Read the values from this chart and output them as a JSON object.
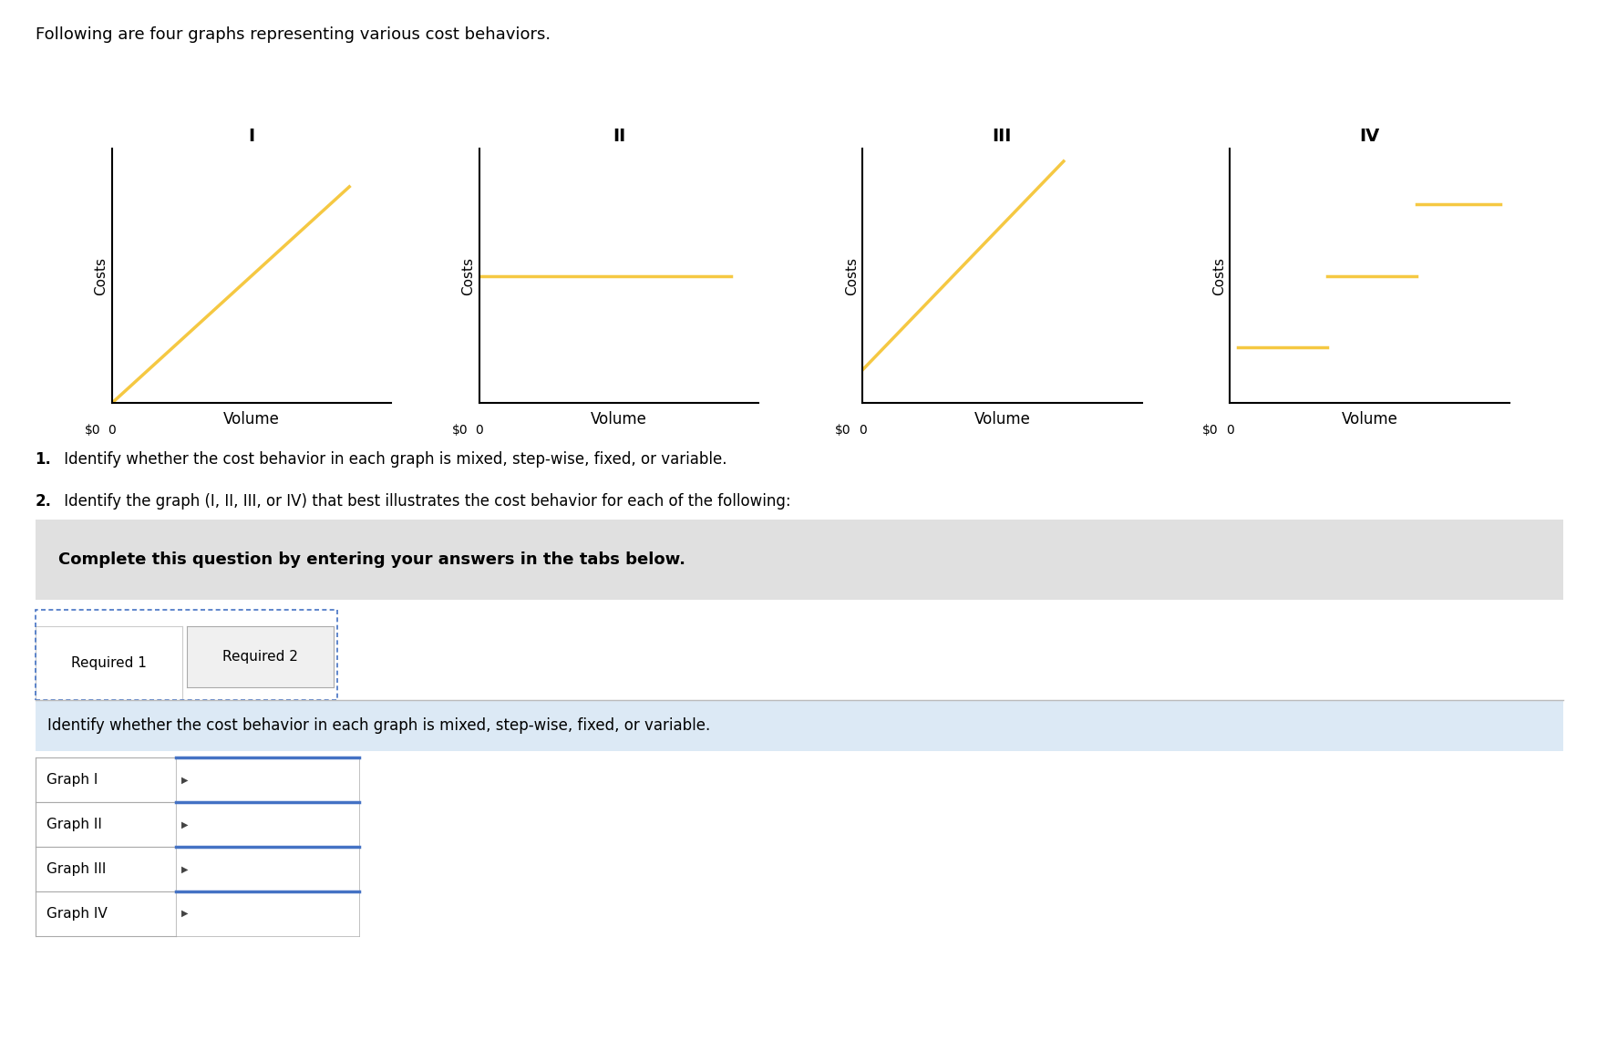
{
  "title_text": "Following are four graphs representing various cost behaviors.",
  "graph_titles": [
    "I",
    "II",
    "III",
    "IV"
  ],
  "ylabel": "Costs",
  "xlabel": "Volume",
  "dollar_label": "$0",
  "zero_label": "0",
  "line_color": "#F5C842",
  "axis_color": "#000000",
  "background_color": "#ffffff",
  "text_color": "#000000",
  "question_1_bold": "1.",
  "question_1_rest": " Identify whether the cost behavior in each graph is mixed, step-wise, fixed, or variable.",
  "question_2_bold": "2.",
  "question_2_rest": " Identify the graph (I, II, III, or IV) that best illustrates the cost behavior for each of the following:",
  "box_text": "Complete this question by entering your answers in the tabs below.",
  "tab1": "Required 1",
  "tab2": "Required 2",
  "instruction_text": "Identify whether the cost behavior in each graph is mixed, step-wise, fixed, or variable.",
  "table_rows": [
    "Graph I",
    "Graph II",
    "Graph III",
    "Graph IV"
  ],
  "box_bg": "#e0e0e0",
  "instruction_bg": "#dce9f5",
  "table_border": "#4472c4",
  "dotted_border": "#4472c4"
}
